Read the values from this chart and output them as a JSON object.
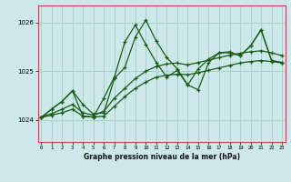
{
  "title": "Graphe pression niveau de la mer (hPa)",
  "bg_color": "#cce8e8",
  "plot_bg": "#cce8e8",
  "grid_color": "#aad4cc",
  "line_color": "#1a5c1a",
  "border_color": "#cc4444",
  "x_ticks": [
    0,
    1,
    2,
    3,
    4,
    5,
    6,
    7,
    8,
    9,
    10,
    11,
    12,
    13,
    14,
    15,
    16,
    17,
    18,
    19,
    20,
    21,
    22,
    23
  ],
  "y_ticks": [
    1024,
    1025,
    1026
  ],
  "ylim": [
    1023.55,
    1026.35
  ],
  "xlim": [
    -0.3,
    23.3
  ],
  "line_main": [
    1024.05,
    1024.22,
    1024.38,
    1024.6,
    1024.32,
    1024.12,
    1024.15,
    1024.85,
    1025.08,
    1025.7,
    1026.05,
    1025.62,
    1025.28,
    1025.05,
    1024.72,
    1024.62,
    1025.18,
    1025.38,
    1025.38,
    1025.32,
    1025.52,
    1025.85,
    1025.22,
    1025.18
  ],
  "line_trend_low": [
    1024.05,
    1024.1,
    1024.15,
    1024.22,
    1024.08,
    1024.06,
    1024.08,
    1024.28,
    1024.48,
    1024.65,
    1024.78,
    1024.88,
    1024.92,
    1024.94,
    1024.93,
    1024.97,
    1025.02,
    1025.07,
    1025.12,
    1025.17,
    1025.2,
    1025.22,
    1025.2,
    1025.17
  ],
  "line_trend_mid": [
    1024.06,
    1024.13,
    1024.22,
    1024.32,
    1024.15,
    1024.1,
    1024.18,
    1024.45,
    1024.65,
    1024.85,
    1025.0,
    1025.1,
    1025.15,
    1025.17,
    1025.13,
    1025.18,
    1025.23,
    1025.28,
    1025.33,
    1025.37,
    1025.4,
    1025.42,
    1025.38,
    1025.32
  ],
  "line_jagged2": [
    1024.05,
    1024.22,
    1024.38,
    1024.6,
    1024.08,
    1024.06,
    1024.45,
    1024.88,
    1025.6,
    1025.95,
    1025.55,
    1025.18,
    1024.88,
    1025.02,
    1024.72,
    1025.05,
    1025.25,
    1025.38,
    1025.4,
    1025.32,
    1025.52,
    1025.85,
    1025.22,
    1025.18
  ]
}
